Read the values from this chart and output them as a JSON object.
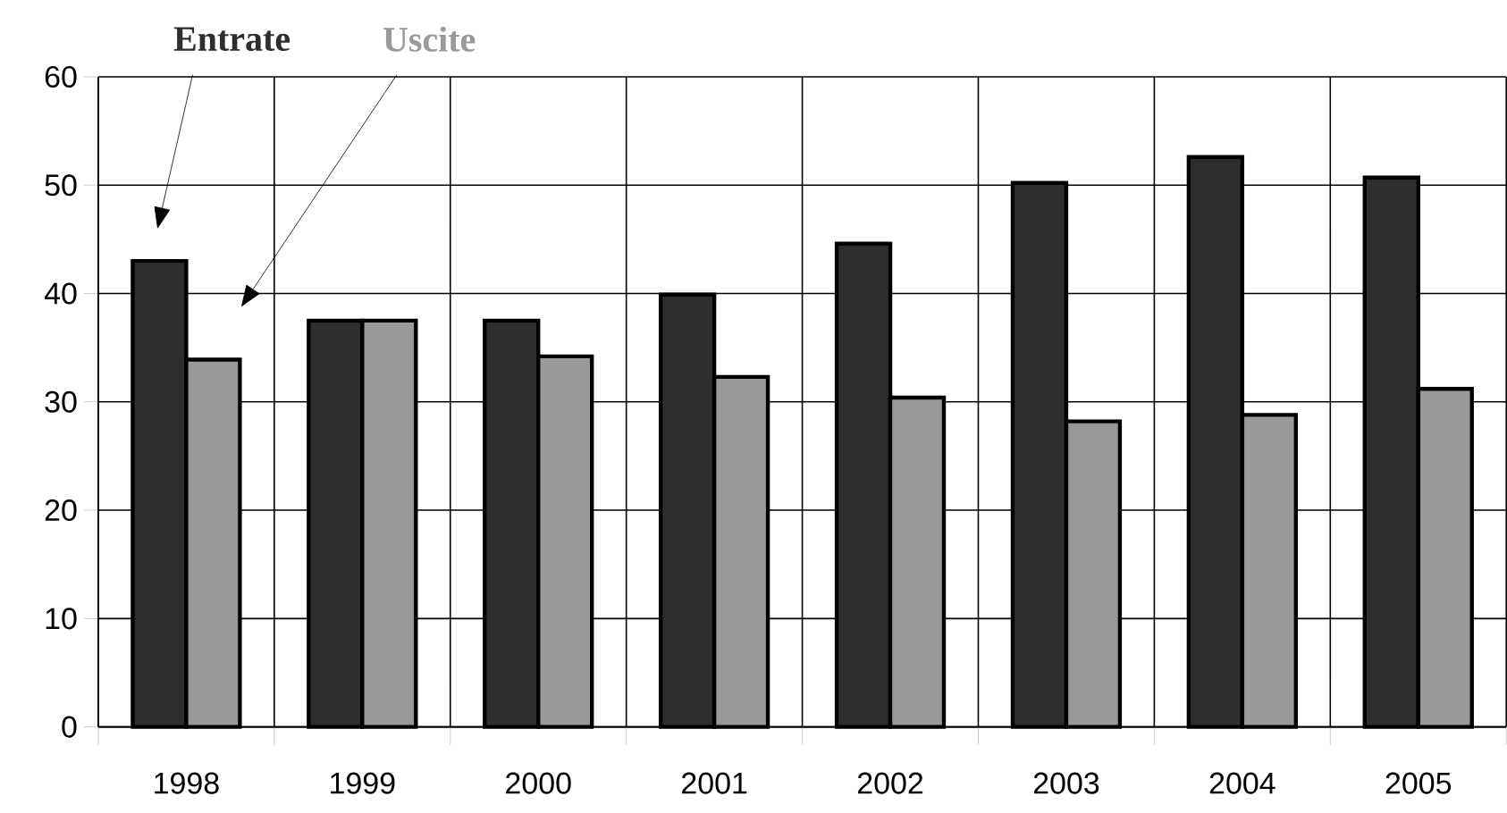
{
  "chart_data": {
    "type": "bar",
    "categories": [
      "1998",
      "1999",
      "2000",
      "2001",
      "2002",
      "2003",
      "2004",
      "2005"
    ],
    "series": [
      {
        "name": "Entrate",
        "color": "#2e2e2e",
        "values": [
          43.0,
          37.5,
          37.5,
          39.9,
          44.6,
          50.2,
          52.6,
          50.7
        ]
      },
      {
        "name": "Uscite",
        "color": "#999999",
        "values": [
          33.9,
          37.5,
          34.2,
          32.3,
          30.4,
          28.2,
          28.8,
          31.2
        ]
      }
    ],
    "ylim": [
      0,
      60
    ],
    "yticks": [
      0,
      10,
      20,
      30,
      40,
      50,
      60
    ],
    "grid": true
  }
}
